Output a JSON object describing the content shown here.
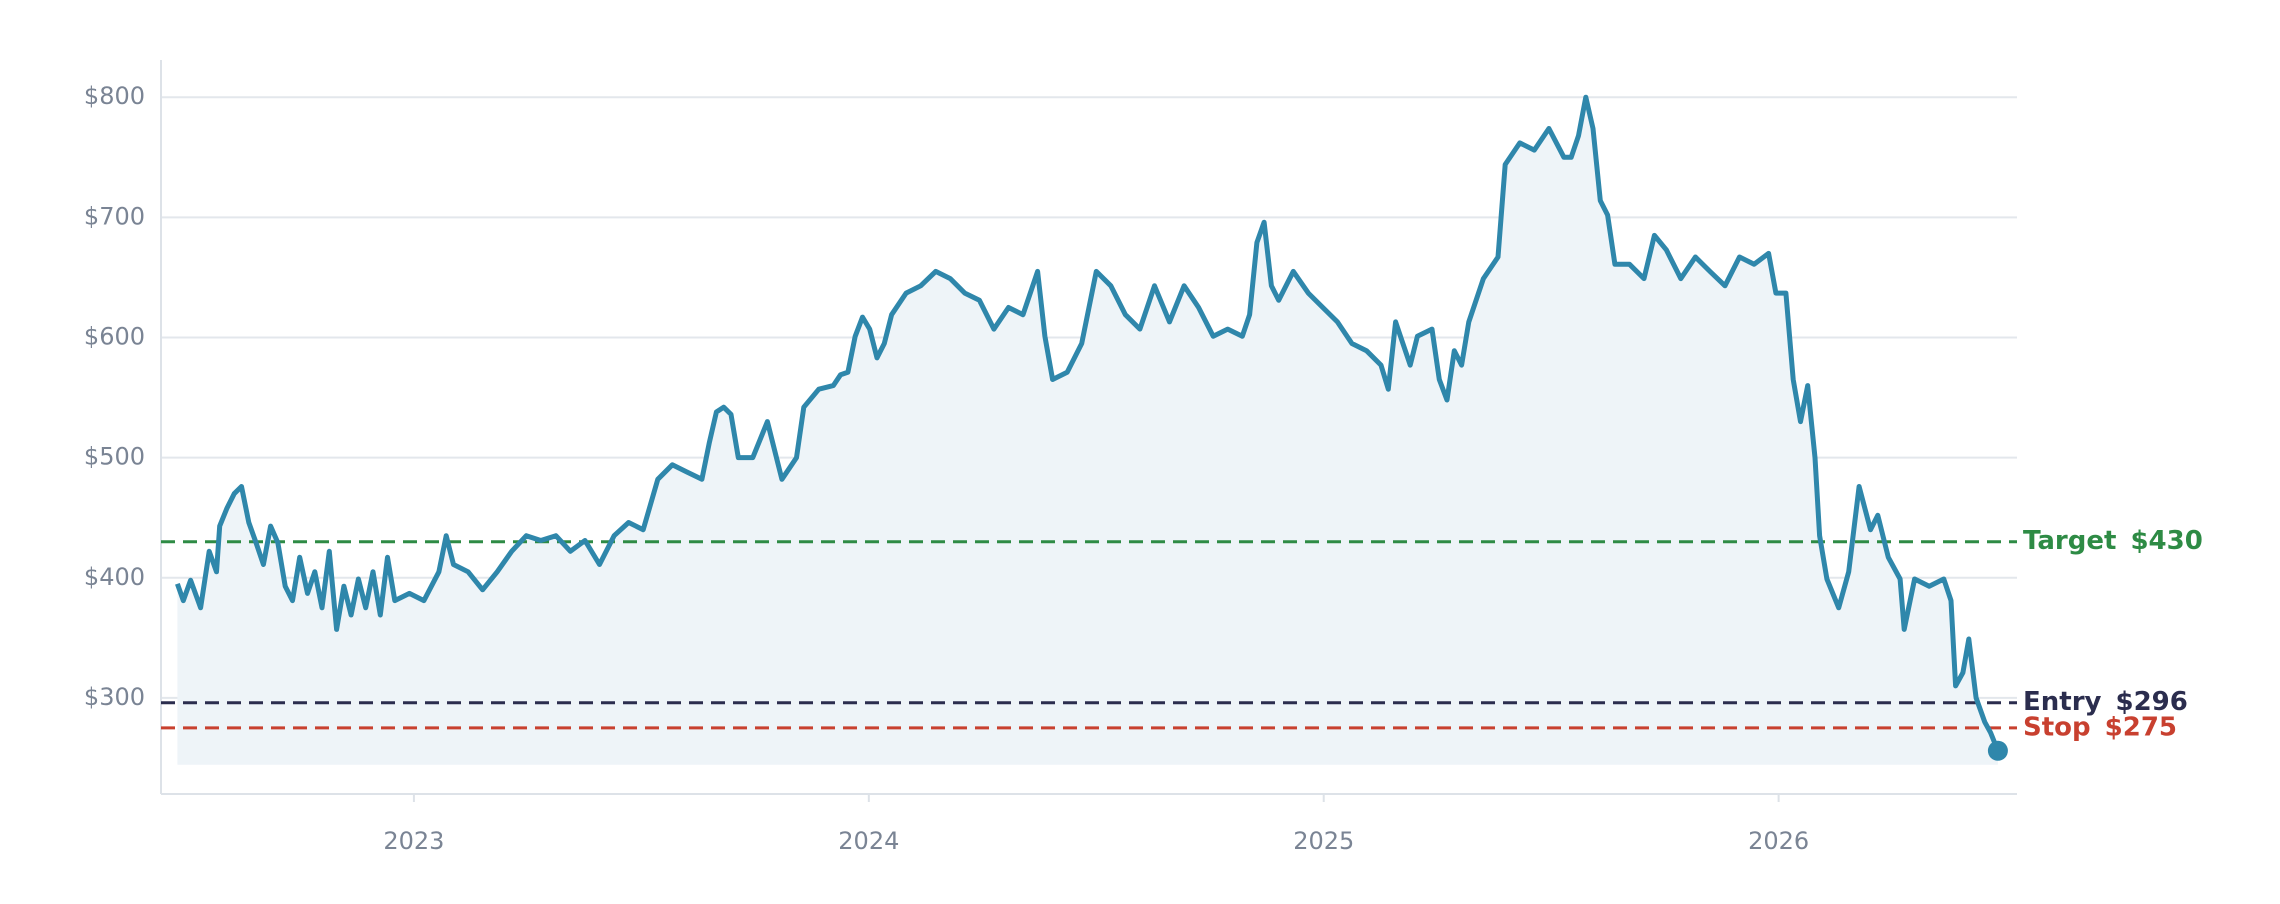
{
  "chart_data": {
    "type": "line",
    "x": [
      2022.48,
      2022.493,
      2022.509,
      2022.531,
      2022.55,
      2022.566,
      2022.573,
      2022.589,
      2022.605,
      2022.621,
      2022.637,
      2022.653,
      2022.669,
      2022.685,
      2022.701,
      2022.717,
      2022.733,
      2022.749,
      2022.766,
      2022.782,
      2022.798,
      2022.814,
      2022.83,
      2022.846,
      2022.862,
      2022.878,
      2022.894,
      2022.91,
      2022.926,
      2022.942,
      2022.958,
      2022.99,
      2023.022,
      2023.055,
      2023.071,
      2023.087,
      2023.119,
      2023.151,
      2023.183,
      2023.215,
      2023.247,
      2023.279,
      2023.312,
      2023.344,
      2023.376,
      2023.408,
      2023.44,
      2023.472,
      2023.504,
      2023.536,
      2023.568,
      2023.6,
      2023.633,
      2023.649,
      2023.665,
      2023.681,
      2023.697,
      2023.713,
      2023.745,
      2023.777,
      2023.809,
      2023.841,
      2023.857,
      2023.89,
      2023.922,
      2023.938,
      2023.954,
      2023.97,
      2023.986,
      2024.002,
      2024.018,
      2024.034,
      2024.05,
      2024.082,
      2024.114,
      2024.147,
      2024.179,
      2024.211,
      2024.243,
      2024.275,
      2024.307,
      2024.339,
      2024.371,
      2024.387,
      2024.404,
      2024.436,
      2024.468,
      2024.5,
      2024.532,
      2024.564,
      2024.596,
      2024.628,
      2024.661,
      2024.693,
      2024.725,
      2024.757,
      2024.789,
      2024.821,
      2024.837,
      2024.853,
      2024.869,
      2024.885,
      2024.901,
      2024.933,
      2024.966,
      2024.998,
      2025.03,
      2025.062,
      2025.094,
      2025.126,
      2025.142,
      2025.158,
      2025.174,
      2025.19,
      2025.206,
      2025.238,
      2025.254,
      2025.271,
      2025.287,
      2025.303,
      2025.319,
      2025.351,
      2025.383,
      2025.399,
      2025.431,
      2025.463,
      2025.495,
      2025.528,
      2025.544,
      2025.56,
      2025.576,
      2025.592,
      2025.608,
      2025.624,
      2025.64,
      2025.672,
      2025.704,
      2025.727,
      2025.753,
      2025.785,
      2025.817,
      2025.849,
      2025.882,
      2025.914,
      2025.946,
      2025.978,
      2025.994,
      2026.016,
      2026.032,
      2026.048,
      2026.064,
      2026.08,
      2026.09,
      2026.106,
      2026.132,
      2026.154,
      2026.177,
      2026.202,
      2026.218,
      2026.241,
      2026.267,
      2026.276,
      2026.299,
      2026.331,
      2026.363,
      2026.379,
      2026.389,
      2026.405,
      2026.418,
      2026.434,
      2026.453,
      2026.466,
      2026.482
    ],
    "values": [
      395,
      381,
      398,
      375,
      422,
      405,
      443,
      458,
      470,
      476,
      446,
      429,
      411,
      443,
      429,
      393,
      381,
      417,
      387,
      405,
      375,
      422,
      357,
      393,
      369,
      399,
      375,
      405,
      369,
      417,
      381,
      387,
      381,
      405,
      435,
      411,
      405,
      390,
      405,
      422,
      435,
      431,
      435,
      422,
      431,
      411,
      435,
      446,
      440,
      482,
      494,
      488,
      482,
      512,
      538,
      542,
      536,
      500,
      500,
      530,
      482,
      500,
      542,
      557,
      560,
      569,
      571,
      601,
      617,
      607,
      583,
      595,
      619,
      637,
      643,
      655,
      649,
      637,
      631,
      607,
      625,
      619,
      655,
      601,
      565,
      571,
      595,
      655,
      643,
      619,
      607,
      643,
      613,
      643,
      625,
      601,
      607,
      601,
      619,
      679,
      696,
      643,
      631,
      655,
      637,
      625,
      613,
      595,
      589,
      577,
      557,
      613,
      595,
      577,
      601,
      607,
      565,
      548,
      589,
      577,
      613,
      649,
      667,
      744,
      762,
      756,
      774,
      750,
      750,
      768,
      800,
      774,
      714,
      702,
      661,
      661,
      649,
      685,
      673,
      649,
      667,
      655,
      643,
      667,
      661,
      670,
      637,
      637,
      565,
      530,
      560,
      500,
      435,
      399,
      375,
      405,
      476,
      440,
      452,
      417,
      399,
      357,
      399,
      393,
      399,
      381,
      310,
      321,
      349,
      300,
      280,
      271,
      256
    ],
    "color": "#2f87ab",
    "area_color": "#eef4f8",
    "xlim": [
      2022.444,
      2026.524
    ],
    "xticks": [
      2023,
      2024,
      2025,
      2026
    ],
    "ylim": [
      220,
      831
    ],
    "yticks": [
      {
        "value": 300,
        "label": "$300"
      },
      {
        "value": 400,
        "label": "$400"
      },
      {
        "value": 500,
        "label": "$500"
      },
      {
        "value": 600,
        "label": "$600"
      },
      {
        "value": 700,
        "label": "$700"
      },
      {
        "value": 800,
        "label": "$800"
      }
    ],
    "grid": true,
    "reference_lines": [
      {
        "name": "Target",
        "value": 430,
        "value_label": "$430",
        "color": "#2e8b45"
      },
      {
        "name": "Entry",
        "value": 296,
        "value_label": "$296",
        "color": "#2b2d4e"
      },
      {
        "name": "Stop",
        "value": 275,
        "value_label": "$275",
        "color": "#c8402f"
      }
    ]
  }
}
